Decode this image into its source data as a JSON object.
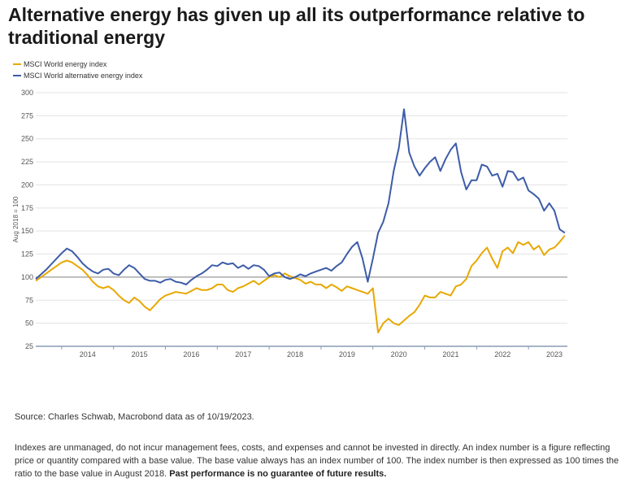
{
  "title": "Alternative energy has given up all its outperformance relative to traditional energy",
  "source": "Source: Charles Schwab, Macrobond data as of 10/19/2023.",
  "disclaimer": "Indexes are unmanaged, do not incur management fees, costs, and expenses and cannot be invested in directly. An index number is a figure reflecting price or quantity compared with a base value. The base value always has an index number of 100. The index number is then expressed as 100 times the ratio to the base value in August 2018.",
  "disclaimer_bold": "Past performance is no guarantee of future results.",
  "colors": {
    "energy": "#e8a800",
    "alternative": "#3d5ca8",
    "baseline": "#9a9a9a",
    "grid": "#e3e3e3",
    "axis": "#8a9bb5"
  },
  "chart_data": {
    "type": "line",
    "ylabel": "Aug 2018 = 100",
    "ylim": [
      25,
      300
    ],
    "yticks": [
      25,
      50,
      75,
      100,
      125,
      150,
      175,
      200,
      225,
      250,
      275,
      300
    ],
    "xlim": [
      2013.5,
      2023.75
    ],
    "xticks": [
      {
        "value": 2014.5,
        "label": "2014"
      },
      {
        "value": 2015.5,
        "label": "2015"
      },
      {
        "value": 2016.5,
        "label": "2016"
      },
      {
        "value": 2017.5,
        "label": "2017"
      },
      {
        "value": 2018.5,
        "label": "2018"
      },
      {
        "value": 2019.5,
        "label": "2019"
      },
      {
        "value": 2020.5,
        "label": "2020"
      },
      {
        "value": 2021.5,
        "label": "2021"
      },
      {
        "value": 2022.5,
        "label": "2022"
      },
      {
        "value": 2023.5,
        "label": "2023"
      }
    ],
    "grid": true,
    "legend_position": "top-left",
    "reference_line": 100,
    "series": [
      {
        "name": "MSCI World energy index",
        "color": "#e8a800",
        "x": [
          2013.5,
          2013.6,
          2013.7,
          2013.8,
          2013.9,
          2014.0,
          2014.1,
          2014.2,
          2014.3,
          2014.4,
          2014.5,
          2014.6,
          2014.7,
          2014.8,
          2014.9,
          2015.0,
          2015.1,
          2015.2,
          2015.3,
          2015.4,
          2015.5,
          2015.6,
          2015.7,
          2015.8,
          2015.9,
          2016.0,
          2016.1,
          2016.2,
          2016.3,
          2016.4,
          2016.5,
          2016.6,
          2016.7,
          2016.8,
          2016.9,
          2017.0,
          2017.1,
          2017.2,
          2017.3,
          2017.4,
          2017.5,
          2017.6,
          2017.7,
          2017.8,
          2017.9,
          2018.0,
          2018.1,
          2018.2,
          2018.3,
          2018.4,
          2018.5,
          2018.6,
          2018.7,
          2018.8,
          2018.9,
          2019.0,
          2019.1,
          2019.2,
          2019.3,
          2019.4,
          2019.5,
          2019.6,
          2019.7,
          2019.8,
          2019.9,
          2020.0,
          2020.1,
          2020.2,
          2020.3,
          2020.4,
          2020.5,
          2020.6,
          2020.7,
          2020.8,
          2020.9,
          2021.0,
          2021.1,
          2021.2,
          2021.3,
          2021.4,
          2021.5,
          2021.6,
          2021.7,
          2021.8,
          2021.9,
          2022.0,
          2022.1,
          2022.2,
          2022.3,
          2022.4,
          2022.5,
          2022.6,
          2022.7,
          2022.8,
          2022.9,
          2023.0,
          2023.1,
          2023.2,
          2023.3,
          2023.4,
          2023.5,
          2023.6,
          2023.7
        ],
        "values": [
          96,
          100,
          104,
          108,
          112,
          116,
          118,
          116,
          112,
          108,
          102,
          95,
          90,
          88,
          90,
          86,
          80,
          75,
          72,
          78,
          74,
          68,
          64,
          70,
          76,
          80,
          82,
          84,
          83,
          82,
          85,
          88,
          86,
          86,
          88,
          92,
          92,
          86,
          84,
          88,
          90,
          93,
          96,
          92,
          96,
          100,
          102,
          100,
          104,
          101,
          99,
          97,
          93,
          95,
          92,
          92,
          88,
          92,
          89,
          85,
          90,
          88,
          86,
          84,
          82,
          88,
          40,
          50,
          55,
          50,
          48,
          53,
          58,
          62,
          70,
          80,
          78,
          78,
          84,
          82,
          80,
          90,
          92,
          98,
          112,
          118,
          126,
          132,
          120,
          110,
          128,
          132,
          126,
          138,
          135,
          138,
          130,
          134,
          124,
          130,
          132,
          138,
          145
        ]
      },
      {
        "name": "MSCI World alternative energy index",
        "color": "#3d5ca8",
        "x": [
          2013.5,
          2013.6,
          2013.7,
          2013.8,
          2013.9,
          2014.0,
          2014.1,
          2014.2,
          2014.3,
          2014.4,
          2014.5,
          2014.6,
          2014.7,
          2014.8,
          2014.9,
          2015.0,
          2015.1,
          2015.2,
          2015.3,
          2015.4,
          2015.5,
          2015.6,
          2015.7,
          2015.8,
          2015.9,
          2016.0,
          2016.1,
          2016.2,
          2016.3,
          2016.4,
          2016.5,
          2016.6,
          2016.7,
          2016.8,
          2016.9,
          2017.0,
          2017.1,
          2017.2,
          2017.3,
          2017.4,
          2017.5,
          2017.6,
          2017.7,
          2017.8,
          2017.9,
          2018.0,
          2018.1,
          2018.2,
          2018.3,
          2018.4,
          2018.5,
          2018.6,
          2018.7,
          2018.8,
          2018.9,
          2019.0,
          2019.1,
          2019.2,
          2019.3,
          2019.4,
          2019.5,
          2019.6,
          2019.7,
          2019.8,
          2019.9,
          2020.0,
          2020.1,
          2020.2,
          2020.3,
          2020.4,
          2020.5,
          2020.6,
          2020.7,
          2020.8,
          2020.9,
          2021.0,
          2021.1,
          2021.2,
          2021.3,
          2021.4,
          2021.5,
          2021.6,
          2021.7,
          2021.8,
          2021.9,
          2022.0,
          2022.1,
          2022.2,
          2022.3,
          2022.4,
          2022.5,
          2022.6,
          2022.7,
          2022.8,
          2022.9,
          2023.0,
          2023.1,
          2023.2,
          2023.3,
          2023.4,
          2023.5,
          2023.6,
          2023.7
        ],
        "values": [
          98,
          103,
          108,
          114,
          120,
          126,
          131,
          128,
          122,
          115,
          110,
          106,
          104,
          108,
          109,
          104,
          102,
          108,
          113,
          110,
          104,
          98,
          96,
          96,
          94,
          97,
          98,
          95,
          94,
          92,
          97,
          101,
          104,
          108,
          113,
          112,
          116,
          114,
          115,
          110,
          113,
          109,
          113,
          112,
          108,
          101,
          104,
          105,
          100,
          98,
          100,
          103,
          101,
          104,
          106,
          108,
          110,
          107,
          112,
          116,
          125,
          133,
          138,
          120,
          95,
          120,
          148,
          160,
          180,
          215,
          240,
          282,
          235,
          220,
          210,
          218,
          225,
          230,
          215,
          228,
          238,
          245,
          214,
          195,
          205,
          205,
          222,
          220,
          210,
          212,
          198,
          215,
          214,
          205,
          208,
          194,
          190,
          185,
          172,
          180,
          172,
          152,
          148
        ]
      }
    ]
  }
}
